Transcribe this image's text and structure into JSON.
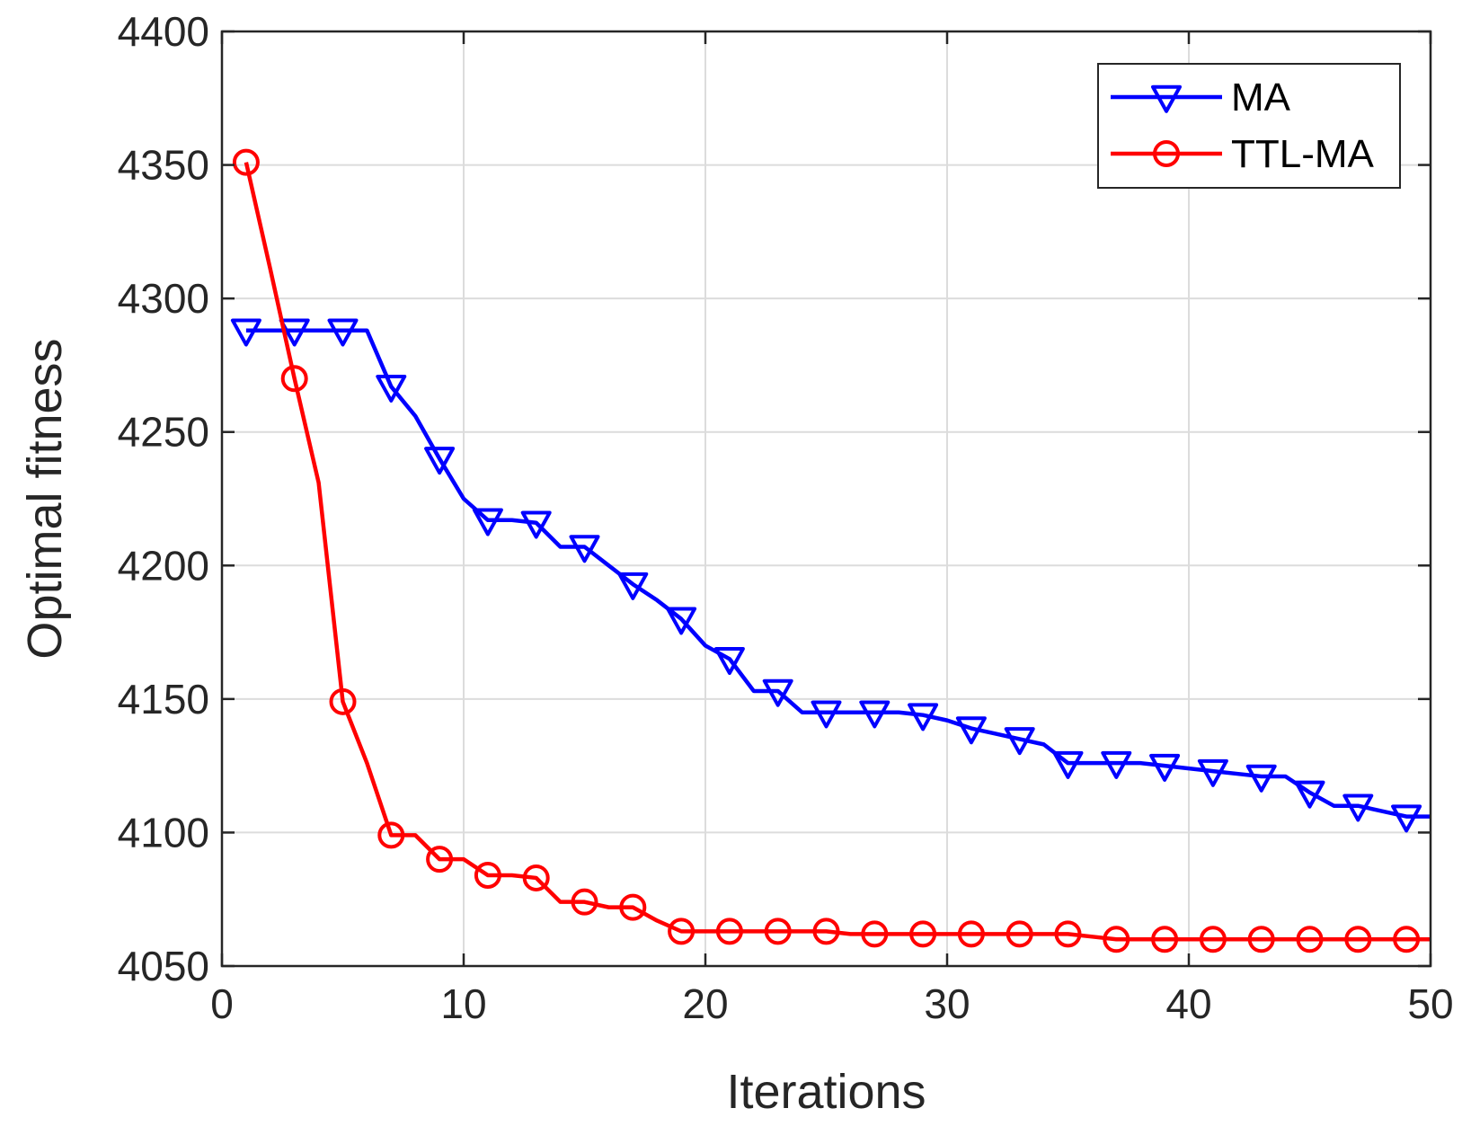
{
  "chart_data": {
    "type": "line",
    "title": "",
    "xlabel": "Iterations",
    "ylabel": "Optimal fitness",
    "xlim": [
      0,
      50
    ],
    "ylim": [
      4050,
      4400
    ],
    "xticks": [
      0,
      10,
      20,
      30,
      40,
      50
    ],
    "yticks": [
      4050,
      4100,
      4150,
      4200,
      4250,
      4300,
      4350,
      4400
    ],
    "grid": true,
    "legend_position": "top-right",
    "series": [
      {
        "name": "MA",
        "color": "#0000ff",
        "marker": "triangle-down",
        "x": [
          1,
          2,
          3,
          4,
          5,
          6,
          7,
          8,
          9,
          10,
          11,
          12,
          13,
          14,
          15,
          16,
          17,
          18,
          19,
          20,
          21,
          22,
          23,
          24,
          25,
          26,
          27,
          28,
          29,
          30,
          31,
          32,
          33,
          34,
          35,
          36,
          37,
          38,
          39,
          40,
          41,
          42,
          43,
          44,
          45,
          46,
          47,
          48,
          49,
          50
        ],
        "y": [
          4288,
          4288,
          4288,
          4288,
          4288,
          4288,
          4267,
          4256,
          4240,
          4225,
          4217,
          4217,
          4216,
          4207,
          4207,
          4200,
          4193,
          4187,
          4180,
          4170,
          4165,
          4153,
          4153,
          4145,
          4145,
          4145,
          4145,
          4145,
          4144,
          4142,
          4139,
          4137,
          4135,
          4133,
          4126,
          4126,
          4126,
          4126,
          4125,
          4124,
          4123,
          4122,
          4121,
          4121,
          4115,
          4110,
          4110,
          4108,
          4106,
          4106
        ],
        "marker_every": 2
      },
      {
        "name": "TTL-MA",
        "color": "#ff0000",
        "marker": "circle",
        "x": [
          1,
          2,
          3,
          4,
          5,
          6,
          7,
          8,
          9,
          10,
          11,
          12,
          13,
          14,
          15,
          16,
          17,
          18,
          19,
          20,
          21,
          22,
          23,
          24,
          25,
          26,
          27,
          28,
          29,
          30,
          31,
          32,
          33,
          34,
          35,
          36,
          37,
          38,
          39,
          40,
          41,
          42,
          43,
          44,
          45,
          46,
          47,
          48,
          49,
          50
        ],
        "y": [
          4351,
          4311,
          4270,
          4231,
          4149,
          4126,
          4099,
          4099,
          4090,
          4090,
          4084,
          4084,
          4083,
          4074,
          4074,
          4072,
          4072,
          4067,
          4063,
          4063,
          4063,
          4063,
          4063,
          4063,
          4063,
          4062,
          4062,
          4062,
          4062,
          4062,
          4062,
          4062,
          4062,
          4062,
          4062,
          4061,
          4060,
          4060,
          4060,
          4060,
          4060,
          4060,
          4060,
          4060,
          4060,
          4060,
          4060,
          4060,
          4060,
          4060
        ],
        "marker_every": 2
      }
    ]
  }
}
